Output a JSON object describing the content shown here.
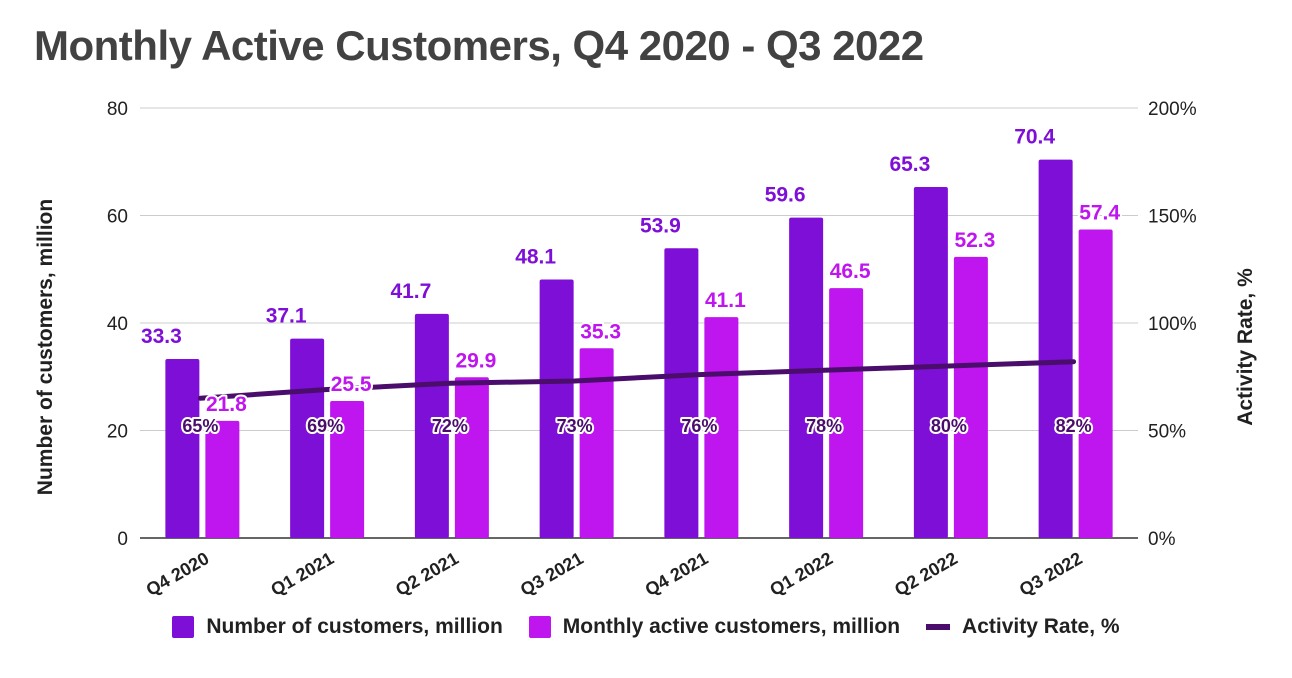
{
  "chart_data": {
    "type": "bar",
    "title": "Monthly Active Customers, Q4 2020 - Q3 2022",
    "categories": [
      "Q4 2020",
      "Q1 2021",
      "Q2 2021",
      "Q3 2021",
      "Q4 2021",
      "Q1 2022",
      "Q2 2022",
      "Q3 2022"
    ],
    "series": [
      {
        "name": "Number of customers, million",
        "type": "bar",
        "axis": "left",
        "color": "#7e0fd6",
        "label_color": "#7e0fd6",
        "values": [
          33.3,
          37.1,
          41.7,
          48.1,
          53.9,
          59.6,
          65.3,
          70.4
        ],
        "labels": [
          "33.3",
          "37.1",
          "41.7",
          "48.1",
          "53.9",
          "59.6",
          "65.3",
          "70.4"
        ]
      },
      {
        "name": "Monthly active customers, million",
        "type": "bar",
        "axis": "left",
        "color": "#bf15ee",
        "label_color": "#bf15ee",
        "values": [
          21.8,
          25.5,
          29.9,
          35.3,
          41.1,
          46.5,
          52.3,
          57.4
        ],
        "labels": [
          "21.8",
          "25.5",
          "29.9",
          "35.3",
          "41.1",
          "46.5",
          "52.3",
          "57.4"
        ]
      },
      {
        "name": "Activity Rate, %",
        "type": "line",
        "axis": "right",
        "color": "#4a0d6b",
        "values": [
          65,
          69,
          72,
          73,
          76,
          78,
          80,
          82
        ],
        "labels": [
          "65%",
          "69%",
          "72%",
          "73%",
          "76%",
          "78%",
          "80%",
          "82%"
        ]
      }
    ],
    "ylabel": "Number of customers, million",
    "y2label": "Activity Rate, %",
    "ylim": [
      0,
      80
    ],
    "y2lim": [
      0,
      200
    ],
    "yticks": [
      "0",
      "20",
      "40",
      "60",
      "80"
    ],
    "y2ticks": [
      "0%",
      "50%",
      "100%",
      "150%",
      "200%"
    ],
    "grid": true,
    "legend_position": "bottom"
  }
}
